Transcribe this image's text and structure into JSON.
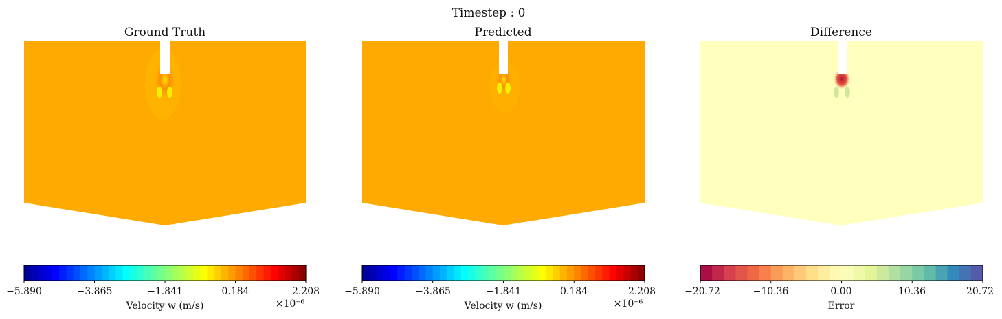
{
  "figure": {
    "suptitle": "Timestep : 0"
  },
  "chart_data": [
    {
      "type": "heatmap",
      "title": "Ground Truth",
      "colormap": "jet",
      "field_fill": "#ffaa00",
      "colorbar": {
        "label": "Velocity w (m/s)",
        "range": [
          -5.89,
          2.208
        ],
        "ticks": [
          "−5.890",
          "−3.865",
          "−1.841",
          "0.184",
          "2.208"
        ],
        "exponent_label": "×10⁻⁶"
      }
    },
    {
      "type": "heatmap",
      "title": "Predicted",
      "colormap": "jet",
      "field_fill": "#ffaa00",
      "colorbar": {
        "label": "Velocity w (m/s)",
        "range": [
          -5.89,
          2.208
        ],
        "ticks": [
          "−5.890",
          "−3.865",
          "−1.841",
          "0.184",
          "2.208"
        ],
        "exponent_label": "×10⁻⁶"
      }
    },
    {
      "type": "heatmap",
      "title": "Difference",
      "colormap": "Spectral",
      "field_fill": "#ffffbe",
      "colorbar": {
        "label": "Error",
        "range": [
          -20.72,
          20.72
        ],
        "ticks": [
          "−20.72",
          "−10.36",
          "0.00",
          "10.36",
          "20.72"
        ],
        "exponent_label": ""
      }
    }
  ]
}
